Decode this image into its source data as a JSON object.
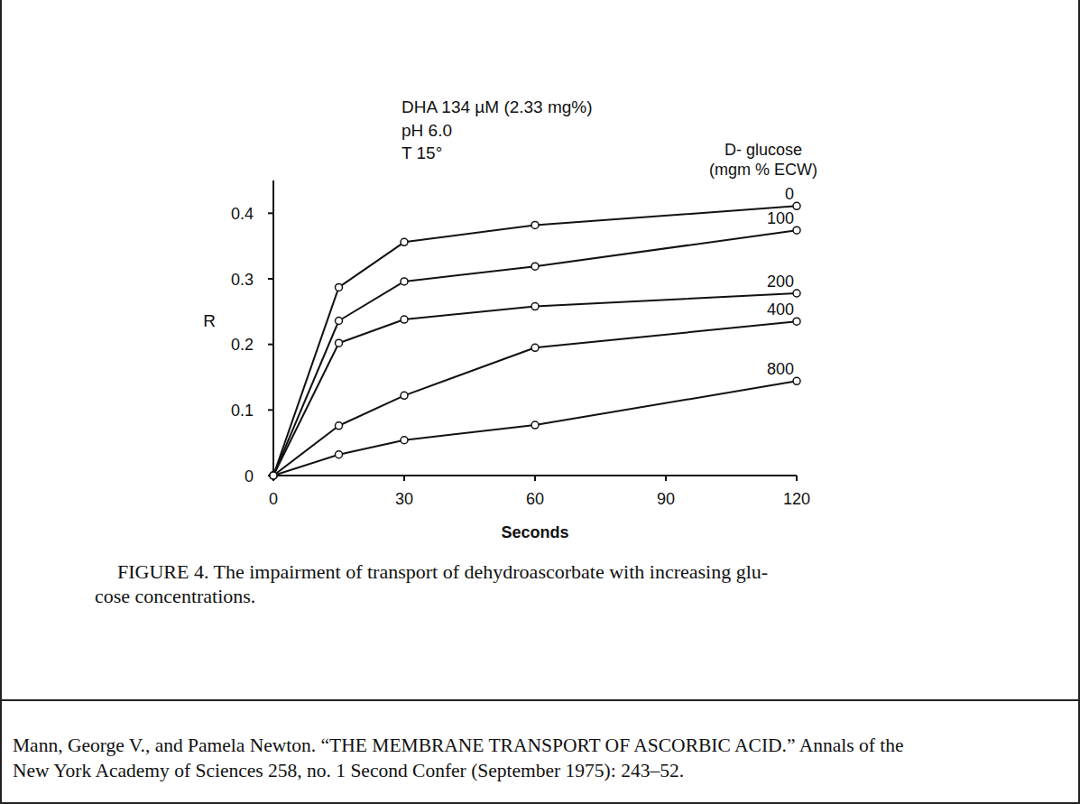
{
  "chart_data": {
    "type": "line",
    "annotations": [
      "DHA 134 µM (2.33 mg%)",
      "pH 6.0",
      "T 15°"
    ],
    "legend_title": [
      "D- glucose",
      "(mgm % ECW)"
    ],
    "x_label": "Seconds",
    "y_label": "R",
    "x": [
      0,
      15,
      30,
      60,
      120
    ],
    "series": [
      {
        "name": "0",
        "values": [
          0,
          0.287,
          0.356,
          0.382,
          0.411
        ]
      },
      {
        "name": "100",
        "values": [
          0,
          0.236,
          0.296,
          0.319,
          0.374
        ]
      },
      {
        "name": "200",
        "values": [
          0,
          0.202,
          0.238,
          0.258,
          0.278
        ]
      },
      {
        "name": "400",
        "values": [
          0,
          0.076,
          0.122,
          0.195,
          0.235
        ]
      },
      {
        "name": "800",
        "values": [
          0,
          0.032,
          0.054,
          0.077,
          0.144
        ]
      }
    ],
    "xlim": [
      0,
      120
    ],
    "xticks": [
      0,
      30,
      60,
      90,
      120
    ],
    "ylim": [
      0,
      0.45
    ],
    "yticks": [
      0,
      0.1,
      0.2,
      0.3,
      0.4
    ],
    "grid": false,
    "color": "#111111",
    "marker": "open-circle",
    "line_style": "solid",
    "caption": [
      "FIGURE 4. The impairment of transport of dehydroascorbate with increasing glu-",
      "cose concentrations."
    ],
    "source": [
      "Mann, George V., and Pamela Newton. “THE MEMBRANE TRANSPORT OF ASCORBIC ACID.” Annals of the",
      "New York Academy of Sciences 258, no. 1 Second Confer (September 1975): 243–52."
    ]
  }
}
